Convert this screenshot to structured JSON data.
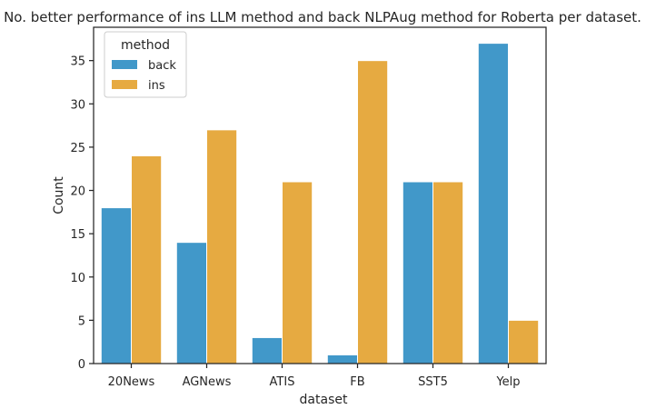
{
  "chart_data": {
    "type": "bar",
    "title": "No. better performance of ins LLM method and back NLPAug method for Roberta per dataset.",
    "xlabel": "dataset",
    "ylabel": "Count",
    "categories": [
      "20News",
      "AGNews",
      "ATIS",
      "FB",
      "SST5",
      "Yelp"
    ],
    "ylim": [
      0,
      38.85
    ],
    "yticks": [
      0,
      5,
      10,
      15,
      20,
      25,
      30,
      35
    ],
    "grid": false,
    "legend": {
      "title": "method",
      "placement": "top-left"
    },
    "series": [
      {
        "name": "back",
        "color": "#4198C9",
        "values": [
          18,
          14,
          3,
          1,
          21,
          37
        ]
      },
      {
        "name": "ins",
        "color": "#E6AA41",
        "values": [
          24,
          27,
          21,
          35,
          21,
          5
        ]
      }
    ]
  }
}
